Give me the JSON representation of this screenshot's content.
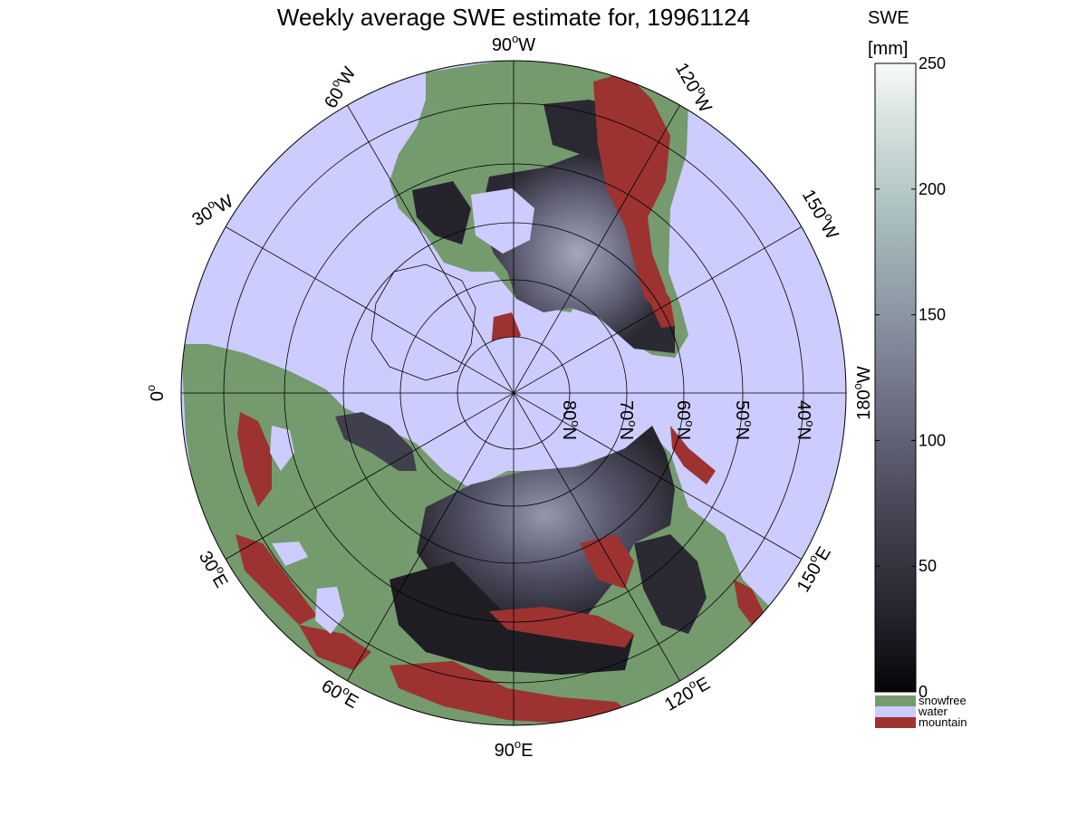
{
  "title": "Weekly average SWE estimate for, 19961124",
  "map": {
    "projection": "north polar stereographic",
    "longitude_labels": [
      {
        "deg": "90",
        "hemi": "W"
      },
      {
        "deg": "60",
        "hemi": "W"
      },
      {
        "deg": "30",
        "hemi": "W"
      },
      {
        "deg": "0",
        "hemi": ""
      },
      {
        "deg": "120",
        "hemi": "W"
      },
      {
        "deg": "150",
        "hemi": "W"
      },
      {
        "deg": "180",
        "hemi": "W"
      },
      {
        "deg": "150",
        "hemi": "E"
      },
      {
        "deg": "120",
        "hemi": "E"
      },
      {
        "deg": "90",
        "hemi": "E"
      },
      {
        "deg": "60",
        "hemi": "E"
      },
      {
        "deg": "30",
        "hemi": "E"
      }
    ],
    "latitude_labels": [
      "80",
      "70",
      "60",
      "50",
      "40"
    ],
    "latitude_hemi": "N",
    "colors": {
      "water": "#ccccff",
      "snowfree": "#749a6e",
      "mountain": "#9c3331",
      "snow_dark": "#25232c",
      "snow_mid": "#5c5b72",
      "snow_light": "#9ea0b8"
    }
  },
  "colorbar": {
    "title_line1": "SWE",
    "title_line2": "[mm]",
    "ticks": [
      "0",
      "50",
      "100",
      "150",
      "200",
      "250"
    ],
    "range": [
      0,
      250
    ],
    "legend": [
      {
        "label": "snowfree",
        "color": "#749a6e"
      },
      {
        "label": "water",
        "color": "#ccccff"
      },
      {
        "label": "mountain",
        "color": "#9c3331"
      }
    ]
  }
}
